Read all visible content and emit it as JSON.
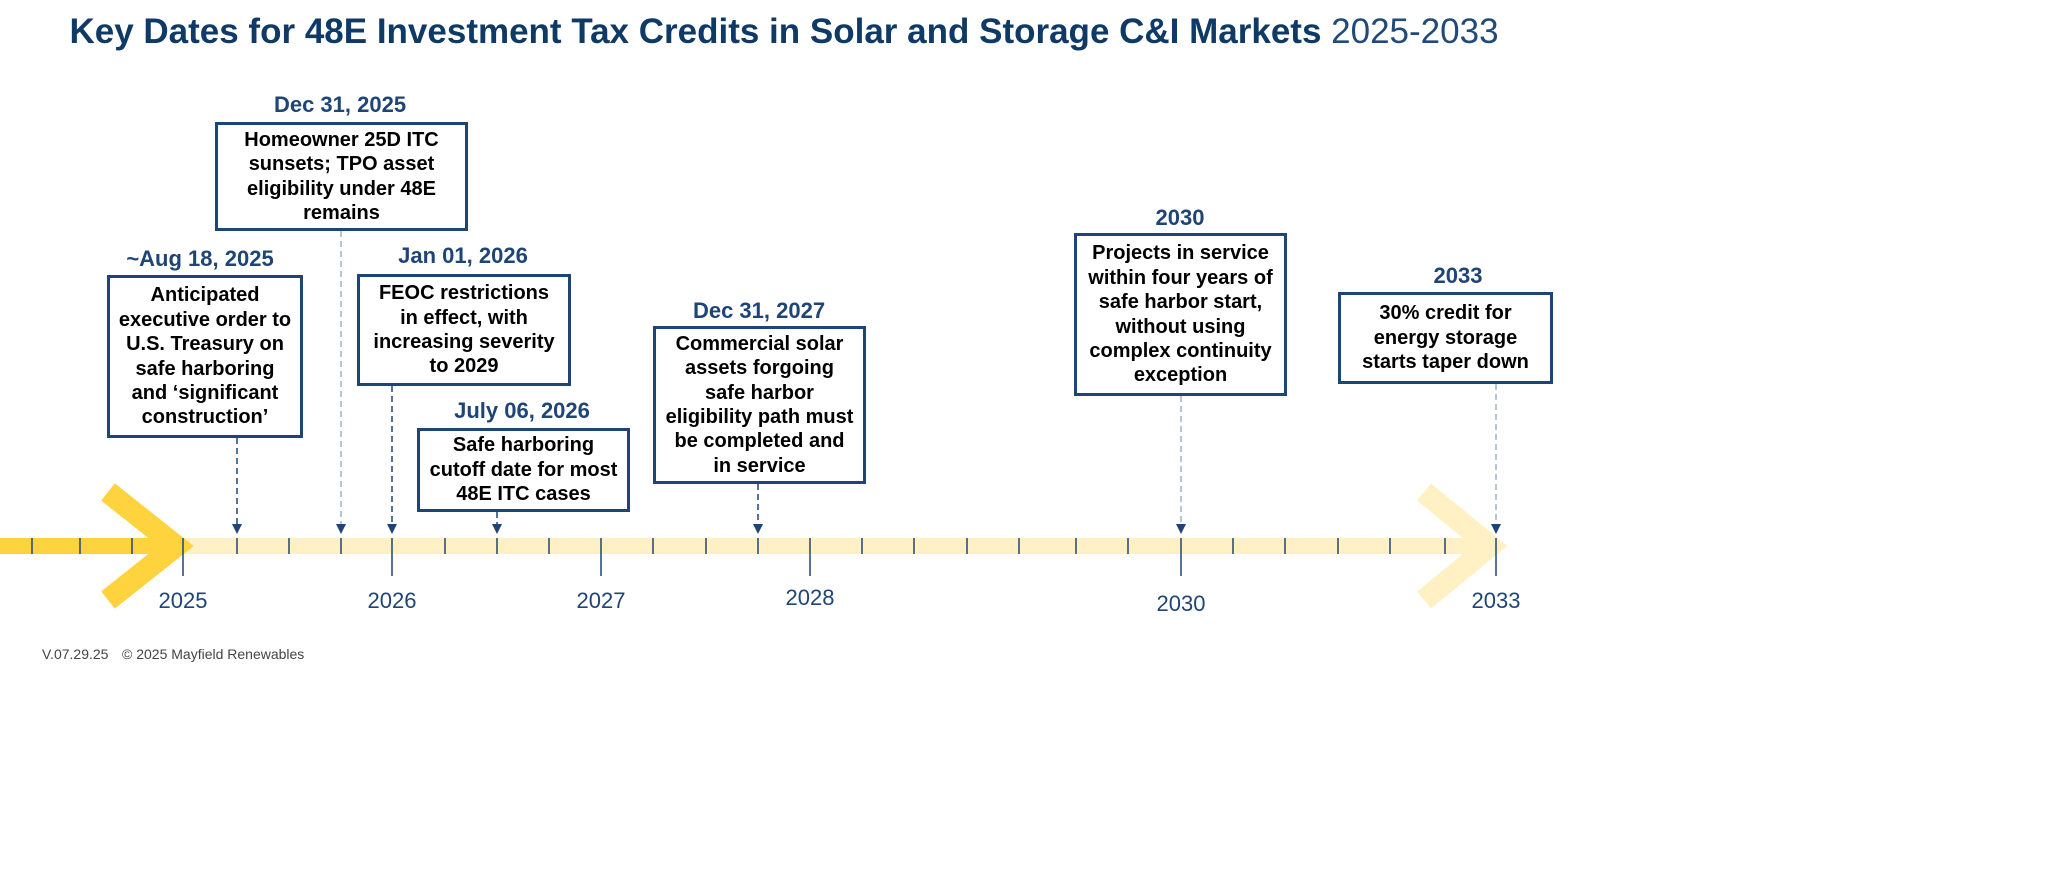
{
  "title": {
    "main": "Key Dates for 48E Investment Tax Credits in Solar and Storage  C&I Markets",
    "years": "2025-2033"
  },
  "colors": {
    "navy": "#1f4476",
    "timeline_past": "#ffd33d",
    "timeline_future": "#fff1c4"
  },
  "events": [
    {
      "date": "~Aug 18, 2025",
      "text": "Anticipated executive order to U.S. Treasury on safe harboring and ‘significant construction’"
    },
    {
      "date": "Dec 31, 2025",
      "text": "Homeowner 25D ITC sunsets; TPO asset eligibility under 48E remains"
    },
    {
      "date": "Jan 01, 2026",
      "text": "FEOC restrictions in effect, with increasing severity to 2029"
    },
    {
      "date": "July 06, 2026",
      "text": "Safe harboring cutoff date for most 48E ITC cases"
    },
    {
      "date": "Dec 31, 2027",
      "text": "Commercial solar assets forgoing safe harbor eligibility path must be completed and in service"
    },
    {
      "date": "2030",
      "text": "Projects in service within four years of safe harbor start, without using complex continuity exception"
    },
    {
      "date": "2033",
      "text": "30% credit for energy storage starts taper down"
    }
  ],
  "years": [
    "2025",
    "2026",
    "2027",
    "2028",
    "2030",
    "2033"
  ],
  "footer": {
    "version": "V.07.29.25",
    "copyright": "© 2025 Mayfield Renewables"
  }
}
